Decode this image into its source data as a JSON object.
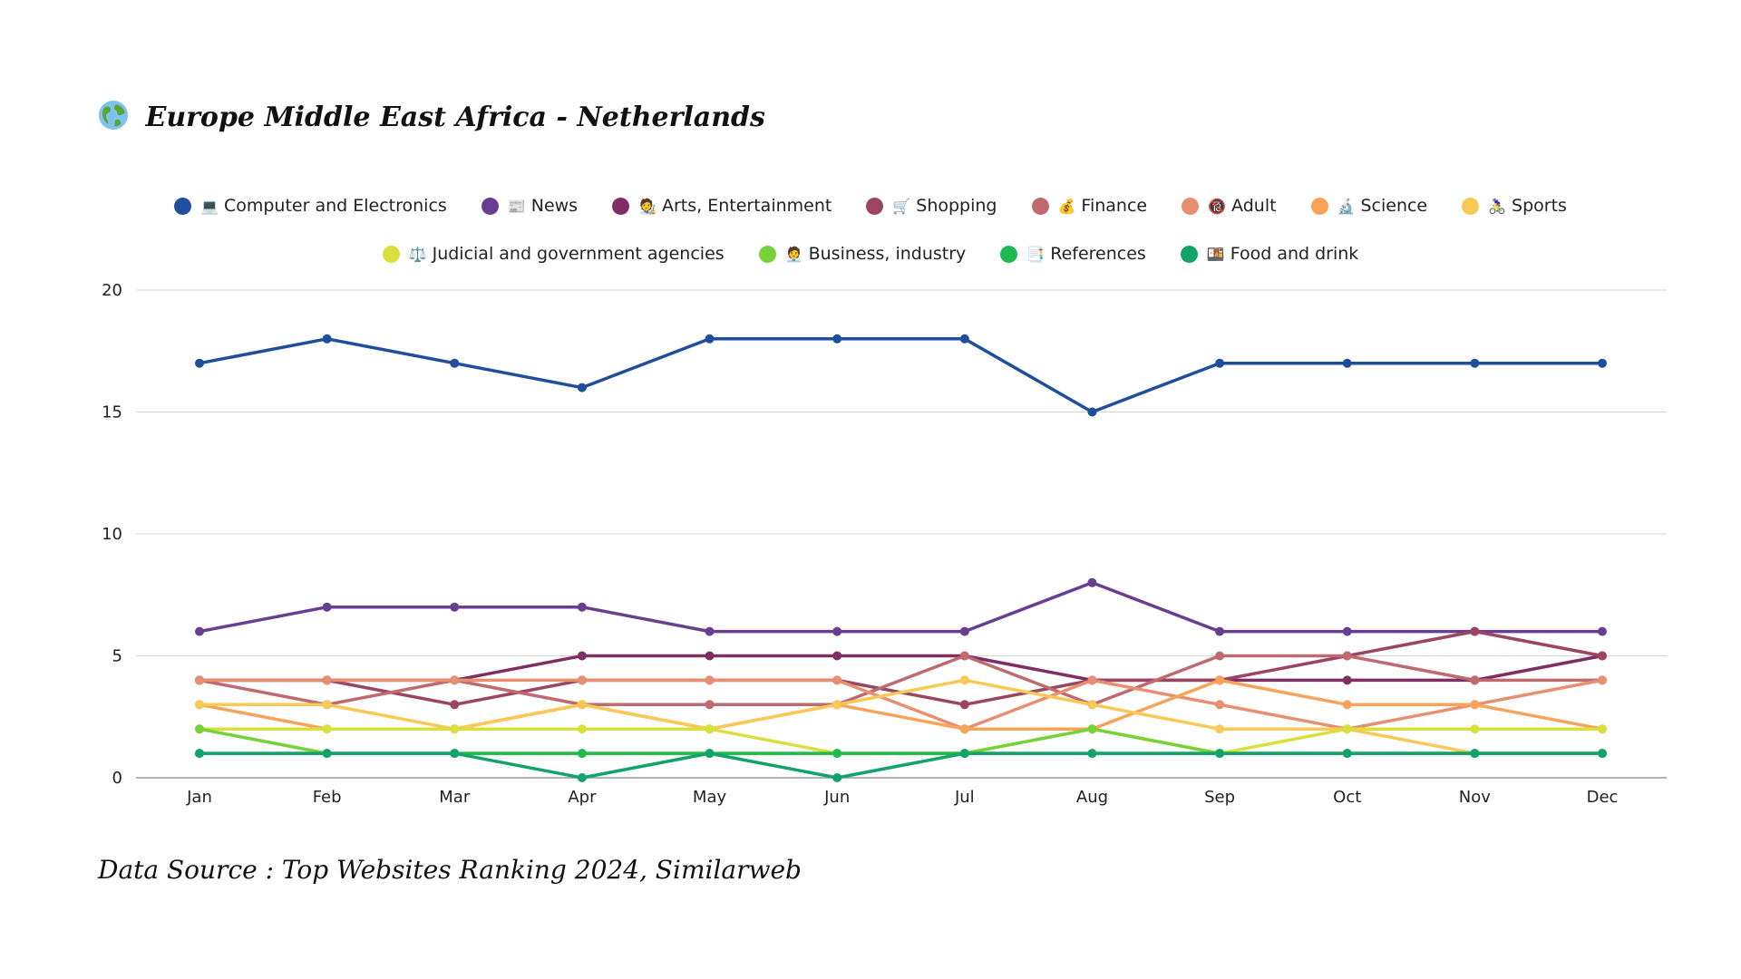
{
  "header": {
    "title_icon": "globe-icon",
    "title": "Europe Middle East Africa - Netherlands"
  },
  "footer": {
    "source": "Data Source : Top Websites Ranking 2024, Similarweb"
  },
  "chart_data": {
    "type": "line",
    "title": "Europe Middle East Africa - Netherlands",
    "xlabel": "",
    "ylabel": "",
    "ylim": [
      0,
      20
    ],
    "yticks": [
      0,
      5,
      10,
      15,
      20
    ],
    "grid": true,
    "legend_position": "top-center",
    "categories": [
      "Jan",
      "Feb",
      "Mar",
      "Apr",
      "May",
      "Jun",
      "Jul",
      "Aug",
      "Sep",
      "Oct",
      "Nov",
      "Dec"
    ],
    "series": [
      {
        "name": "Computer and Electronics",
        "icon": "💻",
        "icon_name": "laptop-icon",
        "color": "#1f4e9c",
        "values": [
          17,
          18,
          17,
          16,
          18,
          18,
          18,
          15,
          17,
          17,
          17,
          17
        ]
      },
      {
        "name": "News",
        "icon": "📰",
        "icon_name": "newspaper-icon",
        "color": "#673f91",
        "values": [
          6,
          7,
          7,
          7,
          6,
          6,
          6,
          8,
          6,
          6,
          6,
          6
        ]
      },
      {
        "name": "Arts, Entertainment",
        "icon": "🧑‍🎨",
        "icon_name": "artist-icon",
        "color": "#7e2e63",
        "values": [
          4,
          4,
          4,
          5,
          5,
          5,
          5,
          4,
          4,
          4,
          4,
          5
        ]
      },
      {
        "name": "Shopping",
        "icon": "🛒",
        "icon_name": "shopping-cart-icon",
        "color": "#9c4563",
        "values": [
          4,
          4,
          3,
          4,
          4,
          4,
          3,
          4,
          4,
          5,
          6,
          5
        ]
      },
      {
        "name": "Finance",
        "icon": "💰",
        "icon_name": "money-bag-icon",
        "color": "#bf6a6e",
        "values": [
          4,
          3,
          4,
          3,
          3,
          3,
          5,
          3,
          5,
          5,
          4,
          4
        ]
      },
      {
        "name": "Adult",
        "icon": "🔞",
        "icon_name": "adult-only-icon",
        "color": "#e88f72",
        "values": [
          4,
          4,
          4,
          4,
          4,
          4,
          2,
          4,
          3,
          2,
          3,
          4
        ]
      },
      {
        "name": "Science",
        "icon": "🔬",
        "icon_name": "microscope-icon",
        "color": "#f7a45a",
        "values": [
          3,
          2,
          2,
          3,
          2,
          3,
          2,
          2,
          4,
          3,
          3,
          2
        ]
      },
      {
        "name": "Sports",
        "icon": "🚴‍♀️",
        "icon_name": "cyclist-icon",
        "color": "#f8c956",
        "values": [
          3,
          3,
          2,
          3,
          2,
          3,
          4,
          3,
          2,
          2,
          1,
          1
        ]
      },
      {
        "name": "Judicial and government agencies",
        "icon": "⚖️",
        "icon_name": "scales-icon",
        "color": "#d9e03b",
        "values": [
          2,
          2,
          2,
          2,
          2,
          1,
          1,
          2,
          1,
          2,
          2,
          2
        ]
      },
      {
        "name": "Business, industry",
        "icon": "🧑‍💼",
        "icon_name": "office-worker-icon",
        "color": "#76d13a",
        "values": [
          2,
          1,
          1,
          1,
          1,
          1,
          1,
          2,
          1,
          1,
          1,
          1
        ]
      },
      {
        "name": "References",
        "icon": "📑",
        "icon_name": "bookmark-tabs-icon",
        "color": "#1fba4f",
        "values": [
          1,
          1,
          1,
          1,
          1,
          1,
          1,
          1,
          1,
          1,
          1,
          1
        ]
      },
      {
        "name": "Food and drink",
        "icon": "🍱",
        "icon_name": "bento-box-icon",
        "color": "#12a36b",
        "values": [
          1,
          1,
          1,
          0,
          1,
          0,
          1,
          1,
          1,
          1,
          1,
          1
        ]
      }
    ]
  }
}
